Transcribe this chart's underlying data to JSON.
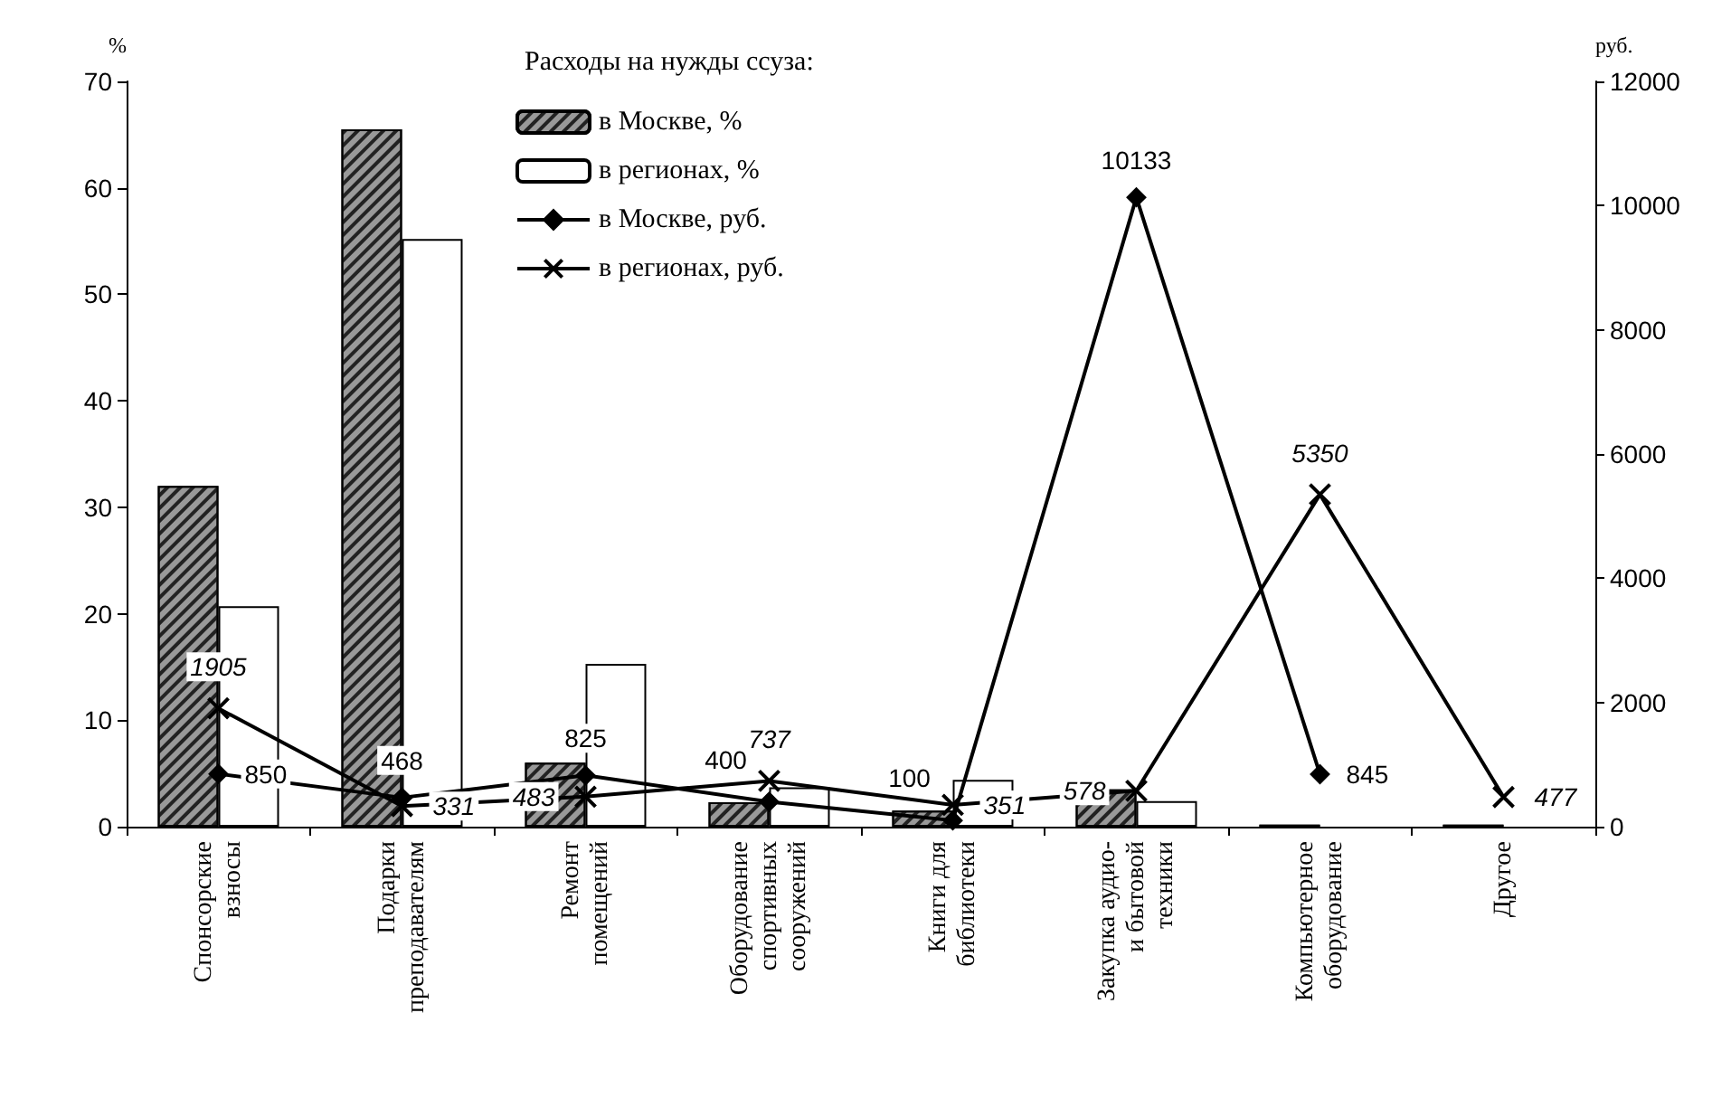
{
  "chart_data": {
    "type": "bar",
    "legend_title": "Расходы на нужды ссуза:",
    "ylabel": "%",
    "y2label": "руб.",
    "categories": [
      "Спонсорские взносы",
      "Подарки преподавателям",
      "Ремонт помещений",
      "Оборудование спортивных сооружений",
      "Книги для библиотеки",
      "Закупка аудио- и бытовой техники",
      "Компьютерное оборудование",
      "Другое"
    ],
    "series": [
      {
        "name": "в Москве, %",
        "color": "#999999",
        "values": [
          32,
          65.5,
          6,
          2.3,
          1.5,
          3.5,
          0.2,
          0.2
        ]
      },
      {
        "name": "в регионах, %",
        "color": "#ffffff",
        "values": [
          20.7,
          55.2,
          15.3,
          3.7,
          4.4,
          2.4,
          0,
          0
        ]
      },
      {
        "name": "в Москве, руб.",
        "type": "line",
        "axis": "y2",
        "marker": "diamond",
        "color": "#000000",
        "values": [
          850,
          468,
          825,
          400,
          100,
          10133,
          845,
          null
        ],
        "value_labels": [
          "850",
          "468",
          "825",
          "400",
          "100",
          "10133",
          "845",
          null
        ]
      },
      {
        "name": "в регионах, руб.",
        "type": "line",
        "axis": "y2",
        "marker": "cross",
        "color": "#000000",
        "values": [
          1905,
          331,
          483,
          737,
          351,
          578,
          5350,
          477
        ],
        "value_labels": [
          "1905",
          "331",
          "483",
          "737",
          "351",
          "578",
          "5350",
          "477"
        ]
      }
    ],
    "ylim": [
      0,
      70
    ],
    "yticks": [
      0,
      10,
      20,
      30,
      40,
      50,
      60,
      70
    ],
    "y2lim": [
      0,
      12000
    ],
    "y2ticks": [
      0,
      2000,
      4000,
      6000,
      8000,
      10000,
      12000
    ],
    "grid": false,
    "legend": "top"
  }
}
